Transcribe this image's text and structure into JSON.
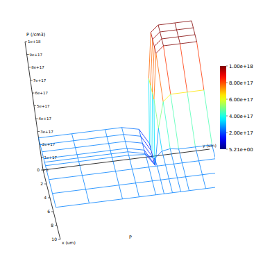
{
  "chart_data": {
    "type": "surface",
    "z_label": "P (/cm3)",
    "x_label": "x (um)",
    "y_label": "y (um)",
    "annotation": "P",
    "x": [
      0,
      1,
      2,
      3,
      3.5,
      4,
      6,
      8,
      10
    ],
    "y": [
      0,
      2,
      4,
      5,
      6,
      6.5,
      7,
      7.5,
      8,
      9,
      10
    ],
    "z": [
      [
        2.5e+17,
        2.5e+17,
        2.5e+17,
        2.5e+17,
        2.2e+17,
        1e+17,
        6e+17,
        9.5e+17,
        1e+18,
        1e+18,
        1e+18
      ],
      [
        2.5e+17,
        2.5e+17,
        2.5e+17,
        2.5e+17,
        2.2e+17,
        1e+17,
        6e+17,
        9.5e+17,
        1e+18,
        1e+18,
        1e+18
      ],
      [
        2.5e+17,
        2.5e+17,
        2.5e+17,
        2.5e+17,
        2.2e+17,
        1e+17,
        6e+17,
        9.5e+17,
        1e+18,
        1e+18,
        1e+18
      ],
      [
        2.5e+17,
        2.5e+17,
        2.5e+17,
        2.5e+17,
        2.2e+17,
        1e+17,
        6e+17,
        9.5e+17,
        1e+18,
        1e+18,
        1e+18
      ],
      [
        2.5e+17,
        2.5e+17,
        2.5e+17,
        2.5e+17,
        2.2e+17,
        1.2e+17,
        4e+17,
        6e+17,
        6.5e+17,
        6.5e+17,
        6.5e+17
      ],
      [
        2.5e+17,
        2.5e+17,
        2.5e+17,
        2.5e+17,
        2.4e+17,
        2e+17,
        2.5e+17,
        2.6e+17,
        2.5e+17,
        2.5e+17,
        2.5e+17
      ],
      [
        2.5e+17,
        2.5e+17,
        2.5e+17,
        2.5e+17,
        2.5e+17,
        2.5e+17,
        2.5e+17,
        2.5e+17,
        2.5e+17,
        2.5e+17,
        2.5e+17
      ],
      [
        2.5e+17,
        2.5e+17,
        2.5e+17,
        2.5e+17,
        2.5e+17,
        2.5e+17,
        2.5e+17,
        2.5e+17,
        2.5e+17,
        2.5e+17,
        2.5e+17
      ],
      [
        2.5e+17,
        2.5e+17,
        2.5e+17,
        2.5e+17,
        2.5e+17,
        2.5e+17,
        2.5e+17,
        2.5e+17,
        2.5e+17,
        2.5e+17,
        2.5e+17
      ]
    ],
    "xlim": [
      0,
      10
    ],
    "ylim": [
      0,
      10
    ],
    "zlim": [
      0,
      1e+18
    ],
    "xticks": [
      0,
      2,
      4,
      6,
      8,
      10
    ],
    "zticks": [
      0,
      {
        "value": 1e+17,
        "label": "1e+17"
      },
      {
        "value": 2e+17,
        "label": "2e+17"
      },
      {
        "value": 3e+17,
        "label": "3e+17"
      },
      {
        "value": 4e+17,
        "label": "4e+17"
      },
      {
        "value": 5e+17,
        "label": "5e+17"
      },
      {
        "value": 6e+17,
        "label": "6e+17"
      },
      {
        "value": 7e+17,
        "label": "7e+17"
      },
      {
        "value": 8e+17,
        "label": "8e+17"
      },
      {
        "value": 9e+17,
        "label": "9e+17"
      },
      {
        "value": 1e+18,
        "label": "1e+18"
      }
    ],
    "colorbar": {
      "range": [
        5.21,
        1e+18
      ],
      "ticks": [
        {
          "value": 1e+18,
          "label": "1.00e+18"
        },
        {
          "value": 8e+17,
          "label": "8.00e+17"
        },
        {
          "value": 6e+17,
          "label": "6.00e+17"
        },
        {
          "value": 4e+17,
          "label": "4.00e+17"
        },
        {
          "value": 2e+17,
          "label": "2.00e+17"
        },
        {
          "value": 5.21,
          "label": "5.21e+00"
        }
      ]
    }
  }
}
